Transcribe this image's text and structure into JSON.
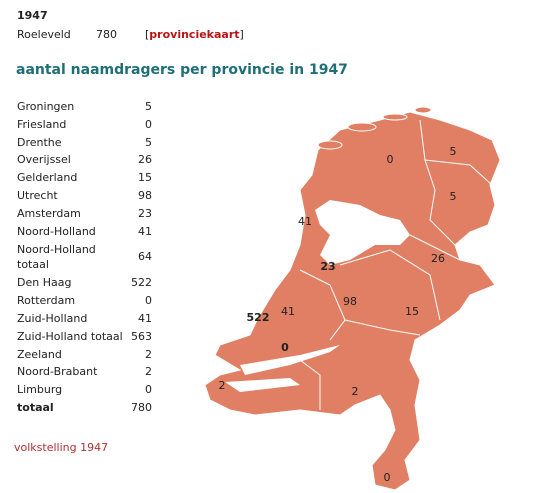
{
  "header": {
    "year": "1947",
    "name": "Roeleveld",
    "count": "780",
    "link_open": "[",
    "link": "provinciekaart",
    "link_close": "]"
  },
  "title": "aantal naamdragers per provincie in 1947",
  "table": {
    "rows": [
      [
        "Groningen",
        "5"
      ],
      [
        "Friesland",
        "0"
      ],
      [
        "Drenthe",
        "5"
      ],
      [
        "Overijssel",
        "26"
      ],
      [
        "Gelderland",
        "15"
      ],
      [
        "Utrecht",
        "98"
      ],
      [
        "Amsterdam",
        "23"
      ],
      [
        "Noord-Holland",
        "41"
      ],
      [
        "Noord-Holland totaal",
        "64"
      ],
      [
        "Den Haag",
        "522"
      ],
      [
        "Rotterdam",
        "0"
      ],
      [
        "Zuid-Holland",
        "41"
      ],
      [
        "Zuid-Holland totaal",
        "563"
      ],
      [
        "Zeeland",
        "2"
      ],
      [
        "Noord-Brabant",
        "2"
      ],
      [
        "Limburg",
        "0"
      ],
      [
        "totaal",
        "780"
      ]
    ]
  },
  "map": {
    "labels": [
      "0",
      "5",
      "5",
      "41",
      "23",
      "26",
      "98",
      "15",
      "41",
      "522",
      "0",
      "2",
      "2",
      "0"
    ]
  },
  "footer": "volkstelling 1947"
}
